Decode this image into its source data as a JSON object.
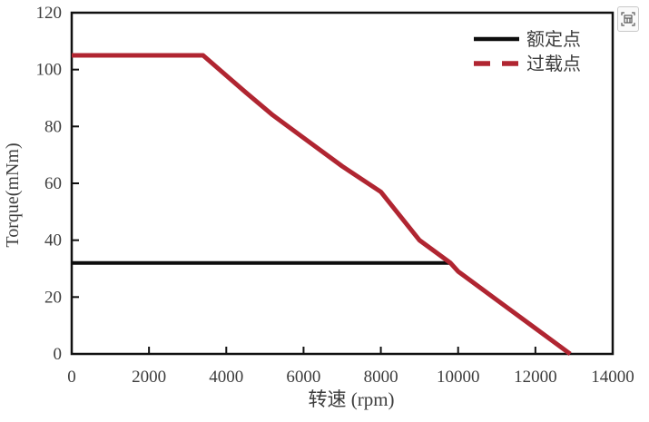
{
  "chart_data": {
    "type": "line",
    "title": "",
    "xlabel": "转速 (rpm)",
    "ylabel": "Torque(mNm)",
    "xlim": [
      0,
      14000
    ],
    "ylim": [
      0,
      120
    ],
    "xticks": [
      0,
      2000,
      4000,
      6000,
      8000,
      10000,
      12000,
      14000
    ],
    "yticks": [
      0,
      20,
      40,
      60,
      80,
      100,
      120
    ],
    "grid": false,
    "legend": {
      "position": "top-right-inside",
      "entries": [
        "额定点",
        "过载点"
      ]
    },
    "axis_color": "#111111",
    "text_color": "#3d3d3d",
    "series": [
      {
        "name": "额定点",
        "color": "#0d0d0d",
        "line_width": 4,
        "plot_style": "solid",
        "legend_style": "solid",
        "points": [
          [
            0,
            32
          ],
          [
            9800,
            32
          ]
        ]
      },
      {
        "name": "过载点",
        "color": "#b02531",
        "line_width": 5,
        "plot_style": "solid",
        "legend_style": "dashed",
        "points": [
          [
            0,
            105
          ],
          [
            3400,
            105
          ],
          [
            4500,
            92
          ],
          [
            5200,
            84
          ],
          [
            6000,
            76
          ],
          [
            7000,
            66
          ],
          [
            8000,
            57
          ],
          [
            9000,
            40
          ],
          [
            9800,
            32
          ],
          [
            10000,
            29
          ],
          [
            11000,
            19
          ],
          [
            12000,
            9
          ],
          [
            12900,
            0
          ]
        ]
      }
    ]
  }
}
